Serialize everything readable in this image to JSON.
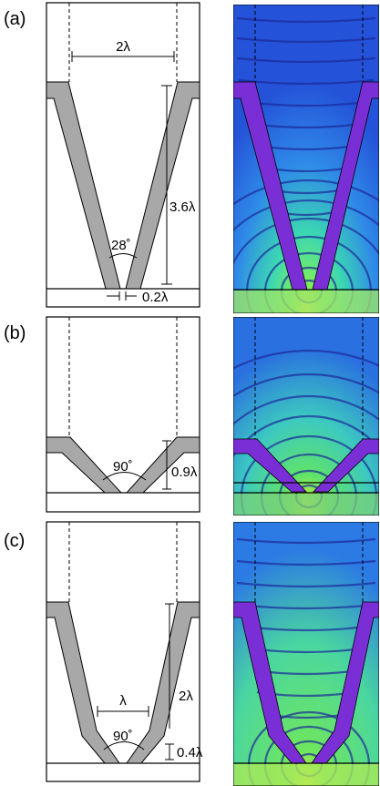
{
  "panels": [
    {
      "id": "a",
      "label": "(a)",
      "aperture_label": "2λ",
      "height_label": "3.6λ",
      "angle_label": "28˚",
      "gap_label": "0.2λ"
    },
    {
      "id": "b",
      "label": "(b)",
      "angle_label": "90˚",
      "height_label": "0.9λ"
    },
    {
      "id": "c",
      "label": "(c)",
      "width_label": "λ",
      "angle_label": "90˚",
      "upper_height_label": "2λ",
      "lower_height_label": "0.4λ"
    }
  ],
  "colors": {
    "wall_schematic": "#a8a8a8",
    "sim_background": "#2c63e8",
    "sim_wavefront": "#1c2a9a",
    "sim_field_high": "#5fe36a",
    "sim_wall": "#7a2fd6"
  }
}
